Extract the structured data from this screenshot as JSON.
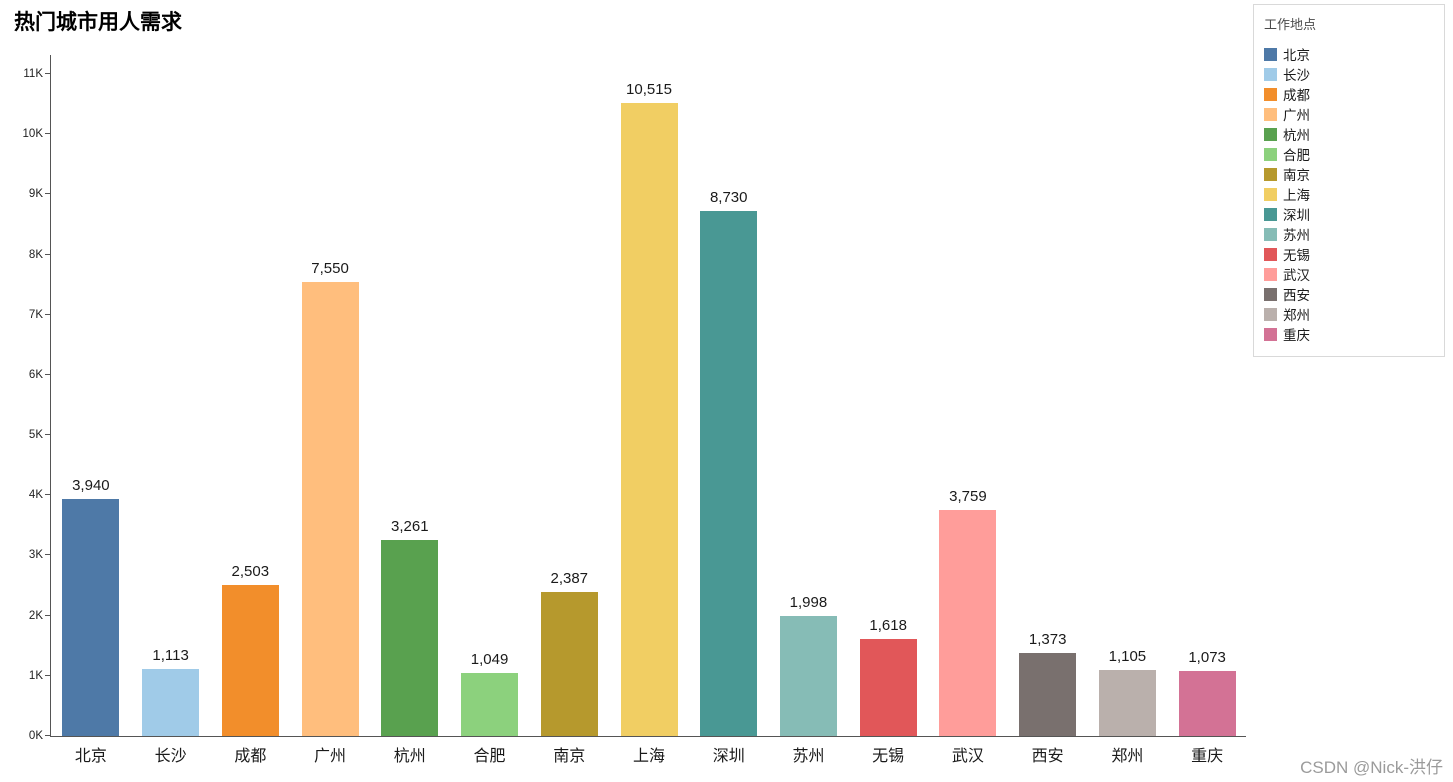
{
  "title": "热门城市用人需求",
  "watermark": "CSDN @Nick-洪仔",
  "legend": {
    "title": "工作地点",
    "items": [
      {
        "label": "北京",
        "color": "#4e79a7"
      },
      {
        "label": "长沙",
        "color": "#a0cbe8"
      },
      {
        "label": "成都",
        "color": "#f28e2b"
      },
      {
        "label": "广州",
        "color": "#ffbe7d"
      },
      {
        "label": "杭州",
        "color": "#59a14f"
      },
      {
        "label": "合肥",
        "color": "#8cd17d"
      },
      {
        "label": "南京",
        "color": "#b6992d"
      },
      {
        "label": "上海",
        "color": "#f1ce63"
      },
      {
        "label": "深圳",
        "color": "#499894"
      },
      {
        "label": "苏州",
        "color": "#86bcb6"
      },
      {
        "label": "无锡",
        "color": "#e15759"
      },
      {
        "label": "武汉",
        "color": "#ff9d9a"
      },
      {
        "label": "西安",
        "color": "#79706e"
      },
      {
        "label": "郑州",
        "color": "#bab0ac"
      },
      {
        "label": "重庆",
        "color": "#d37295"
      }
    ]
  },
  "chart_data": {
    "type": "bar",
    "title": "热门城市用人需求",
    "categories": [
      "北京",
      "长沙",
      "成都",
      "广州",
      "杭州",
      "合肥",
      "南京",
      "上海",
      "深圳",
      "苏州",
      "无锡",
      "武汉",
      "西安",
      "郑州",
      "重庆"
    ],
    "values": [
      3940,
      1113,
      2503,
      7550,
      3261,
      1049,
      2387,
      10515,
      8730,
      1998,
      1618,
      3759,
      1373,
      1105,
      1073
    ],
    "value_labels": [
      "3,940",
      "1,113",
      "2,503",
      "7,550",
      "3,261",
      "1,049",
      "2,387",
      "10,515",
      "8,730",
      "1,998",
      "1,618",
      "3,759",
      "1,373",
      "1,105",
      "1,073"
    ],
    "colors": [
      "#4e79a7",
      "#a0cbe8",
      "#f28e2b",
      "#ffbe7d",
      "#59a14f",
      "#8cd17d",
      "#b6992d",
      "#f1ce63",
      "#499894",
      "#86bcb6",
      "#e15759",
      "#ff9d9a",
      "#79706e",
      "#bab0ac",
      "#d37295"
    ],
    "xlabel": "",
    "ylabel": "",
    "ylim": [
      0,
      11000
    ],
    "y_ticks": [
      "0K",
      "1K",
      "2K",
      "3K",
      "4K",
      "5K",
      "6K",
      "7K",
      "8K",
      "9K",
      "10K",
      "11K"
    ],
    "grid": false,
    "legend_position": "right",
    "legend_title": "工作地点"
  }
}
